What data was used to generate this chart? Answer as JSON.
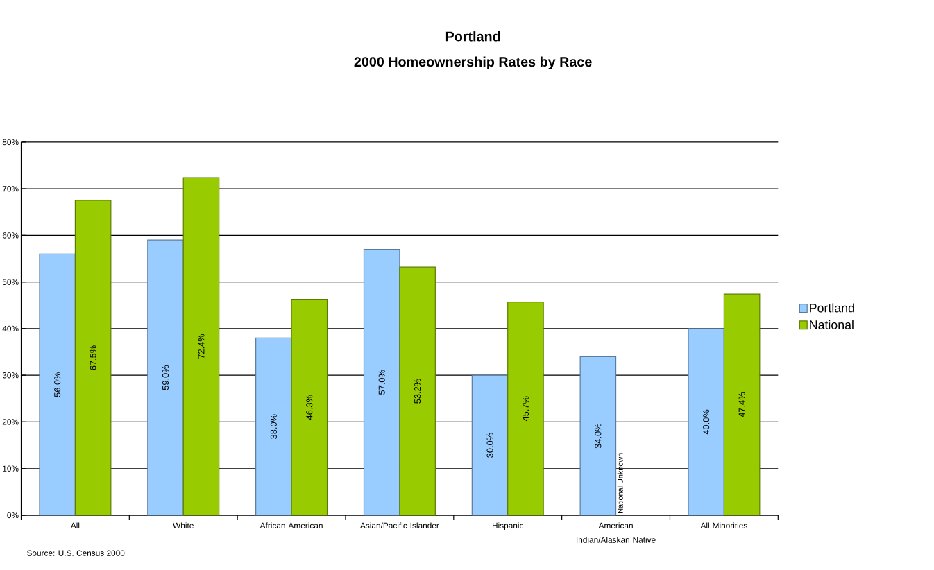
{
  "chart_data": {
    "type": "bar",
    "title": "Portland",
    "subtitle": "2000 Homeownership Rates by Race",
    "categories": [
      "All",
      "White",
      "African American",
      "Asian/Pacific Islander",
      "Hispanic",
      "American Indian/Alaskan Native",
      "All Minorities"
    ],
    "series": [
      {
        "name": "Portland",
        "color": "#99ccff",
        "values": [
          56.0,
          59.0,
          38.0,
          57.0,
          30.0,
          34.0,
          40.0
        ],
        "value_labels": [
          "56.0%",
          "59.0%",
          "38.0%",
          "57.0%",
          "30.0%",
          "34.0%",
          "40.0%"
        ]
      },
      {
        "name": "National",
        "color": "#99cc00",
        "values": [
          67.5,
          72.4,
          46.3,
          53.2,
          45.7,
          null,
          47.4
        ],
        "value_labels": [
          "67.5%",
          "72.4%",
          "46.3%",
          "53.2%",
          "45.7%",
          null,
          "47.4%"
        ]
      }
    ],
    "ylim": [
      0,
      80
    ],
    "yticks": [
      {
        "value": 0,
        "label": "0%"
      },
      {
        "value": 10,
        "label": "10%"
      },
      {
        "value": 20,
        "label": "20%"
      },
      {
        "value": 30,
        "label": "30%"
      },
      {
        "value": 40,
        "label": "40%"
      },
      {
        "value": 50,
        "label": "50%"
      },
      {
        "value": 60,
        "label": "60%"
      },
      {
        "value": 70,
        "label": "70%"
      },
      {
        "value": 80,
        "label": "80%"
      }
    ],
    "grid": "y",
    "legend": "right",
    "annotations": [
      {
        "text": "National Unknown",
        "x": "American Indian/Alaskan Native"
      },
      "Source: U.S. Census 2000"
    ]
  }
}
